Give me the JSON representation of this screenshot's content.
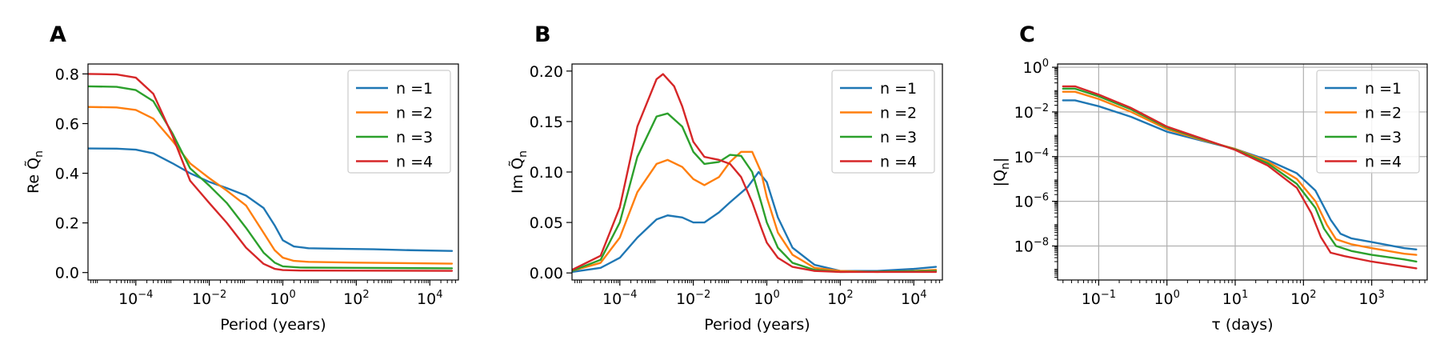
{
  "figure": {
    "background": "#ffffff"
  },
  "chart_data": [
    {
      "panel": "A",
      "type": "line",
      "xscale": "log",
      "xlabel": "Period (years)",
      "ylabel": "Re Q̃",
      "ylabel_sub": "n",
      "xlim": [
        5e-06,
        60000
      ],
      "ylim": [
        -0.03,
        0.84
      ],
      "xticks": [
        {
          "v": 0.0001,
          "b": "10",
          "e": "−4"
        },
        {
          "v": 0.01,
          "b": "10",
          "e": "−2"
        },
        {
          "v": 1,
          "b": "10",
          "e": "0"
        },
        {
          "v": 100,
          "b": "10",
          "e": "2"
        },
        {
          "v": 10000,
          "b": "10",
          "e": "4"
        }
      ],
      "yticks": [
        {
          "v": 0.0,
          "l": "0.0"
        },
        {
          "v": 0.2,
          "l": "0.2"
        },
        {
          "v": 0.4,
          "l": "0.4"
        },
        {
          "v": 0.6,
          "l": "0.6"
        },
        {
          "v": 0.8,
          "l": "0.8"
        }
      ],
      "grid": false,
      "legend": "top-right",
      "series": [
        {
          "name": "n =1",
          "color": "#1f77b4",
          "points": [
            [
              5e-06,
              0.5
            ],
            [
              3e-05,
              0.499
            ],
            [
              0.0001,
              0.495
            ],
            [
              0.0003,
              0.48
            ],
            [
              0.001,
              0.44
            ],
            [
              0.003,
              0.4
            ],
            [
              0.01,
              0.365
            ],
            [
              0.03,
              0.34
            ],
            [
              0.1,
              0.31
            ],
            [
              0.3,
              0.26
            ],
            [
              0.6,
              0.19
            ],
            [
              1,
              0.13
            ],
            [
              2,
              0.105
            ],
            [
              5,
              0.098
            ],
            [
              30,
              0.096
            ],
            [
              300,
              0.094
            ],
            [
              3000,
              0.09
            ],
            [
              40000,
              0.087
            ]
          ]
        },
        {
          "name": "n =2",
          "color": "#ff7f0e",
          "points": [
            [
              5e-06,
              0.667
            ],
            [
              3e-05,
              0.665
            ],
            [
              0.0001,
              0.655
            ],
            [
              0.0003,
              0.62
            ],
            [
              0.001,
              0.53
            ],
            [
              0.003,
              0.44
            ],
            [
              0.01,
              0.38
            ],
            [
              0.03,
              0.33
            ],
            [
              0.1,
              0.27
            ],
            [
              0.3,
              0.16
            ],
            [
              0.6,
              0.09
            ],
            [
              1,
              0.06
            ],
            [
              2,
              0.047
            ],
            [
              5,
              0.043
            ],
            [
              100,
              0.04
            ],
            [
              40000,
              0.036
            ]
          ]
        },
        {
          "name": "n =3",
          "color": "#2ca02c",
          "points": [
            [
              5e-06,
              0.75
            ],
            [
              3e-05,
              0.748
            ],
            [
              0.0001,
              0.735
            ],
            [
              0.0003,
              0.69
            ],
            [
              0.001,
              0.56
            ],
            [
              0.003,
              0.42
            ],
            [
              0.01,
              0.35
            ],
            [
              0.03,
              0.28
            ],
            [
              0.1,
              0.18
            ],
            [
              0.3,
              0.08
            ],
            [
              0.6,
              0.04
            ],
            [
              1,
              0.025
            ],
            [
              3,
              0.02
            ],
            [
              100,
              0.019
            ],
            [
              40000,
              0.017
            ]
          ]
        },
        {
          "name": "n =4",
          "color": "#d62728",
          "points": [
            [
              5e-06,
              0.8
            ],
            [
              3e-05,
              0.798
            ],
            [
              0.0001,
              0.785
            ],
            [
              0.0003,
              0.72
            ],
            [
              0.001,
              0.55
            ],
            [
              0.003,
              0.37
            ],
            [
              0.01,
              0.28
            ],
            [
              0.03,
              0.2
            ],
            [
              0.1,
              0.1
            ],
            [
              0.3,
              0.035
            ],
            [
              0.6,
              0.015
            ],
            [
              1,
              0.01
            ],
            [
              3,
              0.008
            ],
            [
              40000,
              0.007
            ]
          ]
        }
      ]
    },
    {
      "panel": "B",
      "type": "line",
      "xscale": "log",
      "xlabel": "Period (years)",
      "ylabel": "Im Q̃",
      "ylabel_sub": "n",
      "xlim": [
        5e-06,
        60000
      ],
      "ylim": [
        -0.007,
        0.207
      ],
      "xticks": [
        {
          "v": 0.0001,
          "b": "10",
          "e": "−4"
        },
        {
          "v": 0.01,
          "b": "10",
          "e": "−2"
        },
        {
          "v": 1,
          "b": "10",
          "e": "0"
        },
        {
          "v": 100,
          "b": "10",
          "e": "2"
        },
        {
          "v": 10000,
          "b": "10",
          "e": "4"
        }
      ],
      "yticks": [
        {
          "v": 0.0,
          "l": "0.00"
        },
        {
          "v": 0.05,
          "l": "0.05"
        },
        {
          "v": 0.1,
          "l": "0.10"
        },
        {
          "v": 0.15,
          "l": "0.15"
        },
        {
          "v": 0.2,
          "l": "0.20"
        }
      ],
      "grid": false,
      "legend": "top-right",
      "series": [
        {
          "name": "n =1",
          "color": "#1f77b4",
          "points": [
            [
              5e-06,
              0.001
            ],
            [
              3e-05,
              0.005
            ],
            [
              0.0001,
              0.015
            ],
            [
              0.0003,
              0.035
            ],
            [
              0.001,
              0.053
            ],
            [
              0.002,
              0.057
            ],
            [
              0.005,
              0.055
            ],
            [
              0.01,
              0.05
            ],
            [
              0.02,
              0.05
            ],
            [
              0.05,
              0.06
            ],
            [
              0.1,
              0.07
            ],
            [
              0.3,
              0.085
            ],
            [
              0.6,
              0.1
            ],
            [
              1,
              0.09
            ],
            [
              2,
              0.055
            ],
            [
              5,
              0.025
            ],
            [
              20,
              0.008
            ],
            [
              100,
              0.002
            ],
            [
              1000,
              0.002
            ],
            [
              10000,
              0.004
            ],
            [
              40000,
              0.006
            ]
          ]
        },
        {
          "name": "n =2",
          "color": "#ff7f0e",
          "points": [
            [
              5e-06,
              0.002
            ],
            [
              3e-05,
              0.01
            ],
            [
              0.0001,
              0.035
            ],
            [
              0.0003,
              0.08
            ],
            [
              0.001,
              0.108
            ],
            [
              0.002,
              0.112
            ],
            [
              0.005,
              0.105
            ],
            [
              0.01,
              0.093
            ],
            [
              0.02,
              0.087
            ],
            [
              0.05,
              0.095
            ],
            [
              0.1,
              0.11
            ],
            [
              0.2,
              0.12
            ],
            [
              0.4,
              0.12
            ],
            [
              0.7,
              0.1
            ],
            [
              1,
              0.075
            ],
            [
              2,
              0.04
            ],
            [
              5,
              0.018
            ],
            [
              20,
              0.005
            ],
            [
              100,
              0.002
            ],
            [
              1000,
              0.001
            ],
            [
              10000,
              0.002
            ],
            [
              40000,
              0.003
            ]
          ]
        },
        {
          "name": "n =3",
          "color": "#2ca02c",
          "points": [
            [
              5e-06,
              0.002
            ],
            [
              3e-05,
              0.013
            ],
            [
              0.0001,
              0.05
            ],
            [
              0.0003,
              0.115
            ],
            [
              0.001,
              0.155
            ],
            [
              0.002,
              0.158
            ],
            [
              0.005,
              0.145
            ],
            [
              0.01,
              0.12
            ],
            [
              0.02,
              0.108
            ],
            [
              0.05,
              0.11
            ],
            [
              0.1,
              0.117
            ],
            [
              0.2,
              0.116
            ],
            [
              0.4,
              0.1
            ],
            [
              0.7,
              0.07
            ],
            [
              1,
              0.05
            ],
            [
              2,
              0.025
            ],
            [
              5,
              0.01
            ],
            [
              20,
              0.003
            ],
            [
              100,
              0.001
            ],
            [
              40000,
              0.002
            ]
          ]
        },
        {
          "name": "n =4",
          "color": "#d62728",
          "points": [
            [
              5e-06,
              0.003
            ],
            [
              3e-05,
              0.017
            ],
            [
              0.0001,
              0.065
            ],
            [
              0.0003,
              0.145
            ],
            [
              0.001,
              0.192
            ],
            [
              0.0015,
              0.197
            ],
            [
              0.003,
              0.185
            ],
            [
              0.005,
              0.165
            ],
            [
              0.01,
              0.13
            ],
            [
              0.02,
              0.115
            ],
            [
              0.05,
              0.112
            ],
            [
              0.1,
              0.108
            ],
            [
              0.2,
              0.095
            ],
            [
              0.4,
              0.07
            ],
            [
              0.7,
              0.045
            ],
            [
              1,
              0.03
            ],
            [
              2,
              0.015
            ],
            [
              5,
              0.006
            ],
            [
              20,
              0.002
            ],
            [
              100,
              0.001
            ],
            [
              40000,
              0.001
            ]
          ]
        }
      ]
    },
    {
      "panel": "C",
      "type": "line",
      "xscale": "log",
      "yscale": "log",
      "xlabel": "τ (days)",
      "ylabel": "|Q",
      "ylabel_sub": "n",
      "ylabel_suffix": "|",
      "xlim": [
        0.025,
        6500
      ],
      "ylim": [
        3e-10,
        1.4
      ],
      "xticks": [
        {
          "v": 0.1,
          "b": "10",
          "e": "−1"
        },
        {
          "v": 1,
          "b": "10",
          "e": "0"
        },
        {
          "v": 10,
          "b": "10",
          "e": "1"
        },
        {
          "v": 100,
          "b": "10",
          "e": "2"
        },
        {
          "v": 1000,
          "b": "10",
          "e": "3"
        }
      ],
      "yticks": [
        {
          "v": 1e-08,
          "b": "10",
          "e": "−8"
        },
        {
          "v": 1e-06,
          "b": "10",
          "e": "−6"
        },
        {
          "v": 0.0001,
          "b": "10",
          "e": "−4"
        },
        {
          "v": 0.01,
          "b": "10",
          "e": "−2"
        },
        {
          "v": 1,
          "b": "10",
          "e": "0"
        }
      ],
      "grid": true,
      "legend": "top-right",
      "series": [
        {
          "name": "n =1",
          "color": "#1f77b4",
          "points": [
            [
              0.03,
              0.033
            ],
            [
              0.045,
              0.033
            ],
            [
              0.1,
              0.018
            ],
            [
              0.3,
              0.006
            ],
            [
              1,
              0.0013
            ],
            [
              3,
              0.00055
            ],
            [
              10,
              0.00022
            ],
            [
              30,
              7e-05
            ],
            [
              80,
              1.8e-05
            ],
            [
              150,
              3e-06
            ],
            [
              250,
              1.5e-07
            ],
            [
              350,
              3.5e-08
            ],
            [
              500,
              2.2e-08
            ],
            [
              1000,
              1.5e-08
            ],
            [
              3000,
              8e-09
            ],
            [
              4500,
              7e-09
            ]
          ]
        },
        {
          "name": "n =2",
          "color": "#ff7f0e",
          "points": [
            [
              0.03,
              0.08
            ],
            [
              0.045,
              0.08
            ],
            [
              0.1,
              0.038
            ],
            [
              0.3,
              0.01
            ],
            [
              1,
              0.0017
            ],
            [
              3,
              0.0006
            ],
            [
              10,
              0.00022
            ],
            [
              30,
              6e-05
            ],
            [
              80,
              1e-05
            ],
            [
              150,
              1e-06
            ],
            [
              220,
              9e-08
            ],
            [
              300,
              2e-08
            ],
            [
              500,
              1.2e-08
            ],
            [
              1000,
              8e-09
            ],
            [
              3000,
              4.5e-09
            ],
            [
              4500,
              4e-09
            ]
          ]
        },
        {
          "name": "n =3",
          "color": "#2ca02c",
          "points": [
            [
              0.03,
              0.11
            ],
            [
              0.045,
              0.11
            ],
            [
              0.1,
              0.05
            ],
            [
              0.3,
              0.013
            ],
            [
              1,
              0.002
            ],
            [
              3,
              0.00065
            ],
            [
              10,
              0.00021
            ],
            [
              30,
              5e-05
            ],
            [
              80,
              6e-06
            ],
            [
              150,
              5e-07
            ],
            [
              200,
              6e-08
            ],
            [
              300,
              1e-08
            ],
            [
              500,
              6e-09
            ],
            [
              1000,
              4e-09
            ],
            [
              3000,
              2.5e-09
            ],
            [
              4500,
              2e-09
            ]
          ]
        },
        {
          "name": "n =4",
          "color": "#d62728",
          "points": [
            [
              0.03,
              0.14
            ],
            [
              0.045,
              0.14
            ],
            [
              0.1,
              0.06
            ],
            [
              0.3,
              0.015
            ],
            [
              1,
              0.0022
            ],
            [
              3,
              0.0007
            ],
            [
              10,
              0.0002
            ],
            [
              30,
              4e-05
            ],
            [
              80,
              4e-06
            ],
            [
              130,
              3e-07
            ],
            [
              180,
              2.5e-08
            ],
            [
              250,
              5e-09
            ],
            [
              400,
              3.5e-09
            ],
            [
              1000,
              2e-09
            ],
            [
              3000,
              1.2e-09
            ],
            [
              4500,
              1e-09
            ]
          ]
        }
      ]
    }
  ]
}
